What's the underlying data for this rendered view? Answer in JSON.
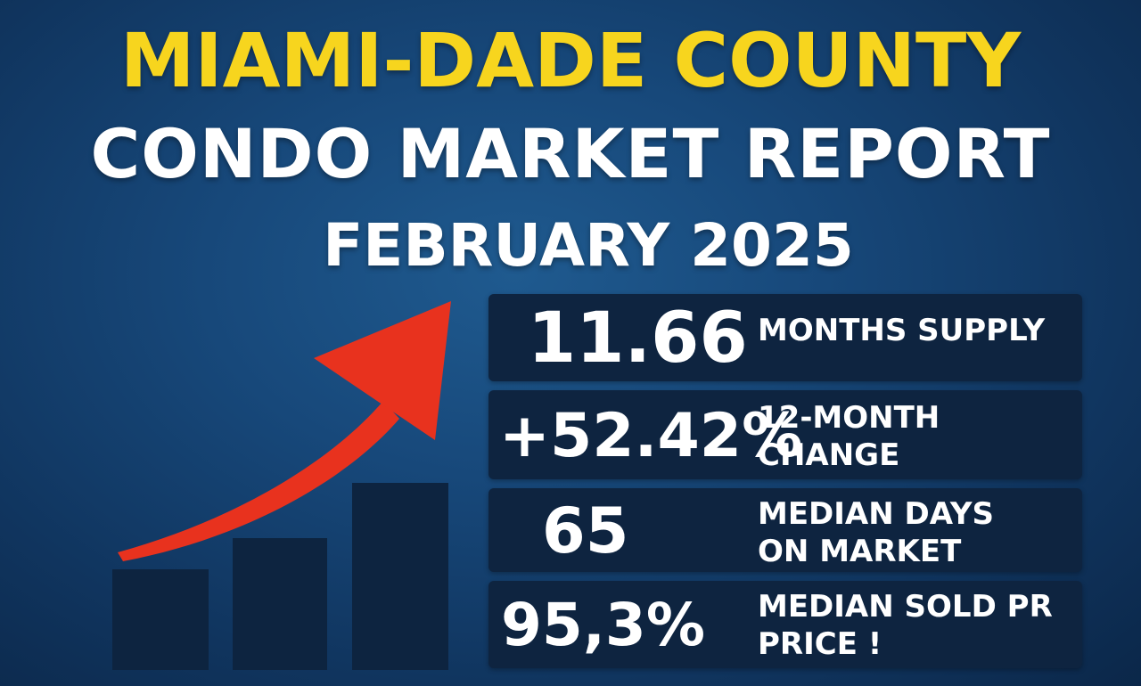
{
  "title": {
    "line1": "MIAMI-DADE COUNTY",
    "line2": "CONDO MARKET REPORT",
    "line3": "FEBRUARY 2025"
  },
  "stats": [
    {
      "value": "11.66",
      "label": "MONTHS SUPPLY"
    },
    {
      "value": "+52.42%",
      "label_line1": "12-MONTH",
      "label_line2": "CHANGE"
    },
    {
      "value": "65",
      "label_line1": "MEDIAN DAYS",
      "label_line2": "ON MARKET"
    },
    {
      "value": "95,3%",
      "label_line1": "MEDIAN SOLD PR",
      "label_line2": "PRICE !"
    }
  ],
  "colors": {
    "title_accent": "#f7d51e",
    "arrow": "#e8321e",
    "card_bg": "#0e2440",
    "bar": "#0d2440"
  },
  "icons": {
    "arrow": "trend-up-arrow-icon",
    "bars": "bar-graph-icon"
  }
}
